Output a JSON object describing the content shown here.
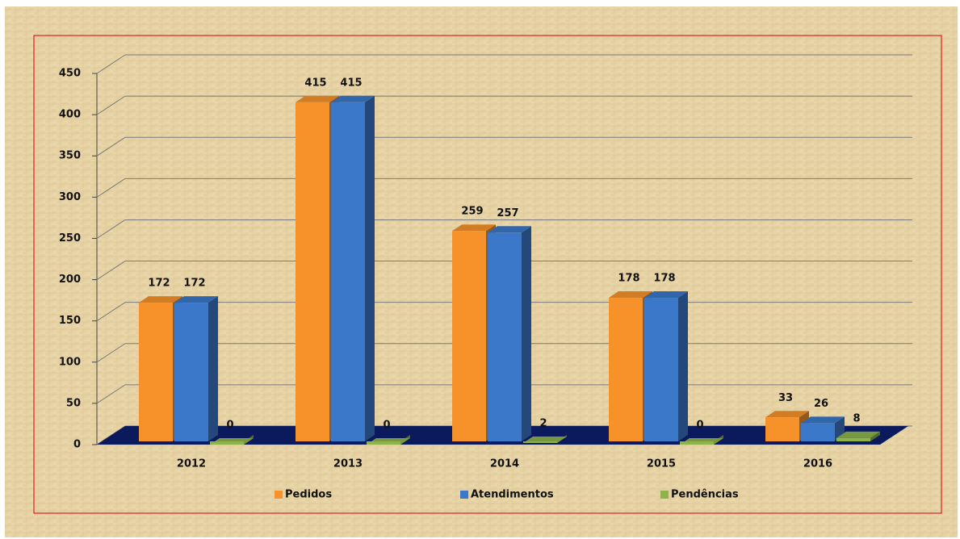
{
  "chart_data": {
    "type": "bar3d",
    "categories": [
      "2012",
      "2013",
      "2014",
      "2015",
      "2016"
    ],
    "series": [
      {
        "name": "Pedidos",
        "color": "#f7922a",
        "values": [
          172,
          415,
          259,
          178,
          33
        ]
      },
      {
        "name": "Atendimentos",
        "color": "#3b78c9",
        "values": [
          172,
          415,
          257,
          178,
          26
        ]
      },
      {
        "name": "Pendências",
        "color": "#8db34a",
        "values": [
          0,
          0,
          2,
          0,
          8
        ]
      }
    ],
    "ylim": [
      0,
      450
    ],
    "yticks": [
      0,
      50,
      100,
      150,
      200,
      250,
      300,
      350,
      400,
      450
    ],
    "grid": true,
    "legend": "bottom"
  }
}
